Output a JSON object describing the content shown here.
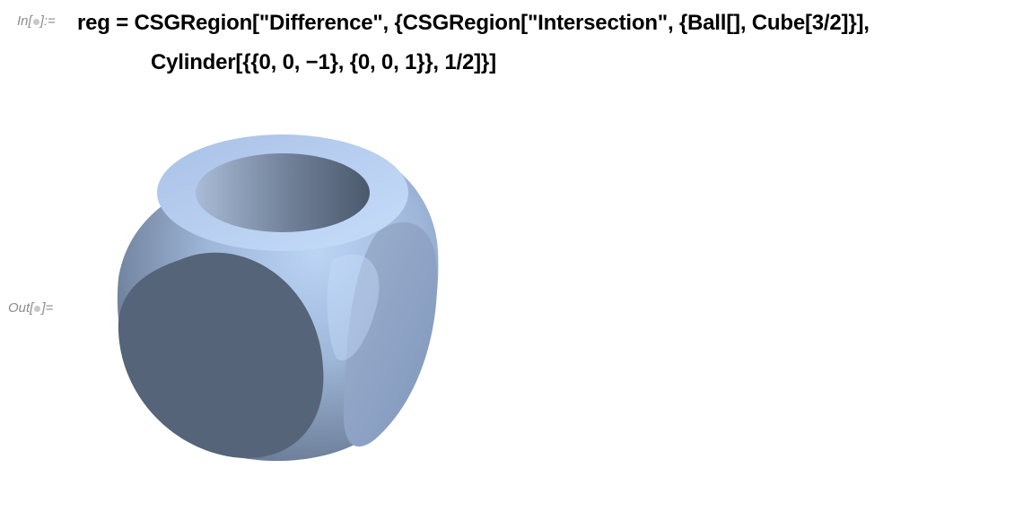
{
  "notebook": {
    "input_cell": {
      "label_prefix": "In[",
      "label_suffix": "]:=",
      "code_line1": "reg = CSGRegion[\"Difference\", {CSGRegion[\"Intersection\", {Ball[], Cube[3/2]}],",
      "code_line2": "Cylinder[{{0, 0, −1}, {0, 0, 1}}, 1/2]}]"
    },
    "output_cell": {
      "label_prefix": "Out[",
      "label_suffix": "]=",
      "graphic_icon": "csg-region-3d-graphic",
      "colors": {
        "dark_face": "#556478",
        "mid_face": "#8aa0c0",
        "light_face": "#bcd5f5",
        "highlight": "#c6dcfb"
      }
    }
  }
}
